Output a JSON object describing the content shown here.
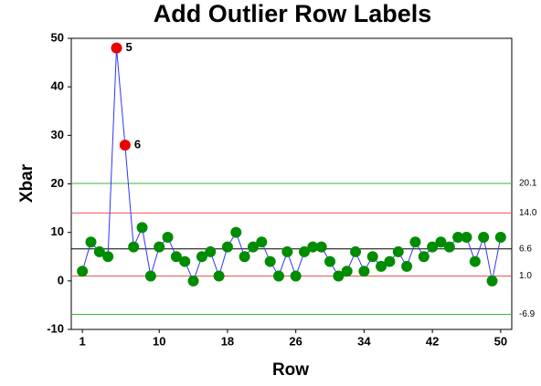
{
  "chart_data": {
    "type": "control",
    "title": "Add Outlier Row Labels",
    "x_label": "Row",
    "y_label": "Xbar",
    "x": [
      1,
      2,
      3,
      4,
      5,
      6,
      7,
      8,
      9,
      10,
      11,
      12,
      13,
      14,
      15,
      16,
      17,
      18,
      19,
      20,
      21,
      22,
      23,
      24,
      25,
      26,
      27,
      28,
      29,
      30,
      31,
      32,
      33,
      34,
      35,
      36,
      37,
      38,
      39,
      40,
      41,
      42,
      43,
      44,
      45,
      46,
      47,
      48,
      49,
      50
    ],
    "values": [
      2,
      8,
      6,
      5,
      48,
      28,
      7,
      11,
      1,
      7,
      9,
      5,
      4,
      0,
      5,
      6,
      1,
      7,
      10,
      5,
      7,
      8,
      4,
      1,
      6,
      1,
      6,
      7,
      7,
      4,
      1,
      2,
      6,
      2,
      5,
      3,
      4,
      6,
      3,
      8,
      5,
      7,
      8,
      7,
      9,
      9,
      4,
      9,
      0,
      9
    ],
    "color": "#008c00",
    "line_color": "#3333ff",
    "outlier_color": "#ee0000",
    "outlier_labels": [
      "5",
      "6"
    ],
    "limits": [
      {
        "value": 20.1,
        "label": "20.1",
        "color": "#33bb33"
      },
      {
        "value": 14.0,
        "label": "14.0",
        "color": "#ee5555"
      },
      {
        "value": 6.6,
        "label": "6.6",
        "color": "#000000"
      },
      {
        "value": 1.0,
        "label": "1.0",
        "color": "#ee5555"
      },
      {
        "value": -6.9,
        "label": "-6.9",
        "color": "#33bb33"
      }
    ],
    "xlim": [
      -0.3,
      51.3
    ],
    "ylim": [
      -10,
      50
    ],
    "xticks": [
      1,
      10,
      18,
      26,
      34,
      42,
      50
    ],
    "yticks": [
      -10,
      0,
      10,
      20,
      30,
      40,
      50
    ]
  }
}
